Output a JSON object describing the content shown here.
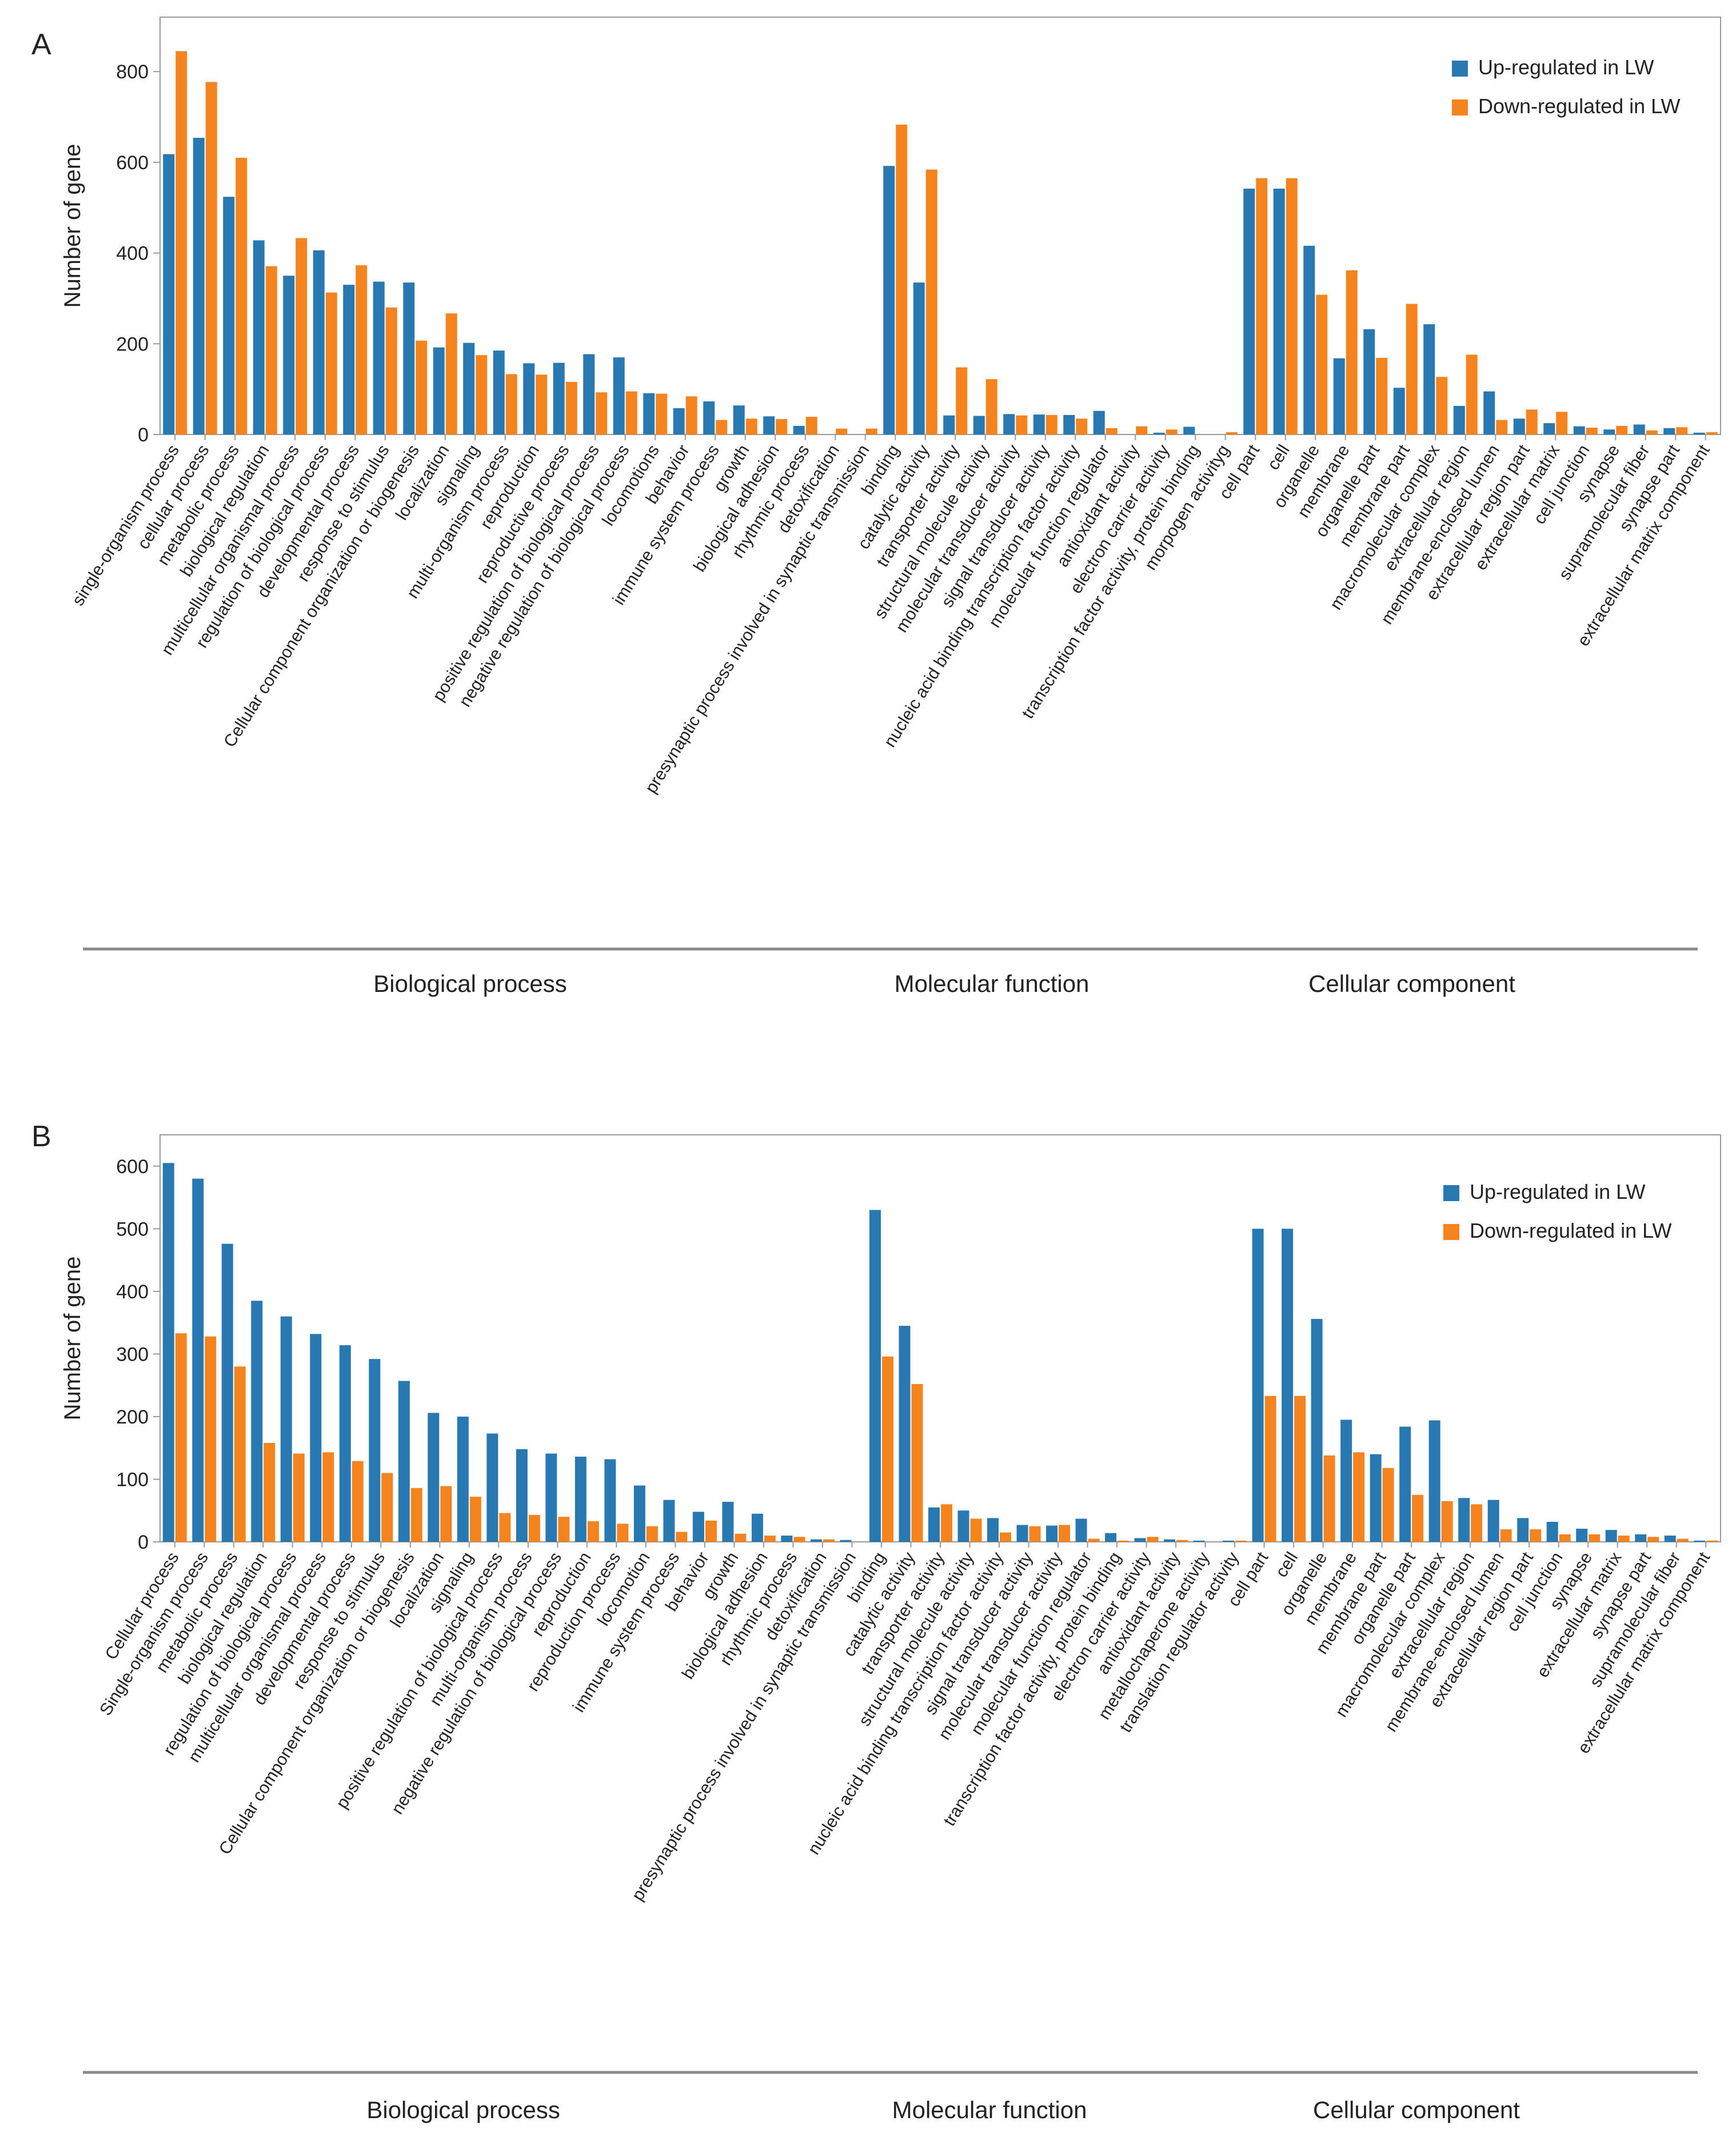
{
  "colors": {
    "up": "#2878b4",
    "down": "#f5841f",
    "axis": "#9a9a9a",
    "text": "#222222",
    "group_line": "#8a8a8a"
  },
  "chart_data": [
    {
      "panel": "A",
      "type": "bar",
      "ylabel": "Number of gene",
      "ylim": [
        0,
        920
      ],
      "yticks": [
        0,
        200,
        400,
        600,
        800
      ],
      "legend_position": "top-right",
      "series": [
        {
          "name": "Up-regulated in LW",
          "color": "#2878b4",
          "values": [
            618,
            654,
            524,
            428,
            350,
            406,
            330,
            337,
            335,
            192,
            202,
            185,
            157,
            158,
            177,
            170,
            91,
            58,
            73,
            64,
            40,
            19,
            0,
            0,
            592,
            335,
            42,
            41,
            45,
            44,
            43,
            52,
            0,
            4,
            17,
            0,
            542,
            542,
            416,
            168,
            232,
            103,
            243,
            63,
            95,
            35,
            25,
            18,
            11,
            22,
            14,
            4
          ]
        },
        {
          "name": "Down-regulated in LW",
          "color": "#f5841f",
          "values": [
            845,
            777,
            610,
            371,
            433,
            313,
            373,
            280,
            207,
            267,
            175,
            133,
            132,
            116,
            93,
            95,
            90,
            84,
            32,
            35,
            34,
            39,
            13,
            13,
            683,
            584,
            148,
            122,
            42,
            43,
            35,
            14,
            18,
            11,
            0,
            5,
            565,
            565,
            308,
            362,
            169,
            288,
            127,
            176,
            32,
            55,
            50,
            15,
            19,
            9,
            16,
            5
          ]
        }
      ],
      "categories": [
        "single-organism process",
        "cellular process",
        "metabolic process",
        "biological regulation",
        "multicellular organismal process",
        "regulation of biological process",
        "developmental process",
        "response to stimulus",
        "Cellular component organization or biogenesis",
        "localization",
        "signaling",
        "multi-organism process",
        "reproduction",
        "reproductive process",
        "positive regulation of biological process",
        "negative regulation of biological process",
        "locomotions",
        "behavior",
        "immune system process",
        "growth",
        "biological adhesion",
        "rhythmic process",
        "detoxification",
        "presynaptic process involved in synaptic transmission",
        "binding",
        "catalytic activity",
        "transporter activity",
        "structural molecule activity",
        "molecular transducer activity",
        "signal transducer activity",
        "nucleic acid binding transcription factor activity",
        "molecular function regulator",
        "antioxidant activity",
        "electron carrier activity",
        "transcription factor activity, protein binding",
        "morpogen activityg",
        "cell part",
        "cell",
        "organelle",
        "membrane",
        "organelle part",
        "membrane part",
        "macromolecular complex",
        "extracellular region",
        "membrane-enclosed lumen",
        "extracellular region part",
        "extracellular matrix",
        "cell junction",
        "synapse",
        "supramolecular fiber",
        "synapse part",
        "extracellular matrix component"
      ],
      "groups": [
        {
          "label": "Biological process",
          "start": 0,
          "end": 23
        },
        {
          "label": "Molecular function",
          "start": 24,
          "end": 35
        },
        {
          "label": "Cellular component",
          "start": 36,
          "end": 51
        }
      ]
    },
    {
      "panel": "B",
      "type": "bar",
      "ylabel": "Number of gene",
      "ylim": [
        0,
        650
      ],
      "yticks": [
        0,
        100,
        200,
        300,
        400,
        500,
        600
      ],
      "legend_position": "top-right",
      "series": [
        {
          "name": "Up-regulated in LW",
          "color": "#2878b4",
          "values": [
            605,
            580,
            476,
            385,
            360,
            332,
            314,
            292,
            257,
            206,
            200,
            173,
            148,
            141,
            136,
            132,
            90,
            67,
            48,
            64,
            45,
            10,
            4,
            3,
            530,
            345,
            55,
            50,
            38,
            27,
            26,
            37,
            14,
            6,
            4,
            2,
            2,
            500,
            500,
            356,
            195,
            140,
            184,
            194,
            70,
            67,
            38,
            32,
            21,
            19,
            12,
            10,
            2
          ]
        },
        {
          "name": "Down-regulated in LW",
          "color": "#f5841f",
          "values": [
            333,
            328,
            280,
            158,
            141,
            143,
            129,
            110,
            86,
            89,
            72,
            46,
            43,
            40,
            33,
            29,
            25,
            16,
            34,
            13,
            10,
            8,
            4,
            0,
            296,
            252,
            60,
            37,
            15,
            25,
            27,
            5,
            2,
            8,
            3,
            0,
            2,
            233,
            233,
            138,
            143,
            118,
            75,
            65,
            60,
            20,
            20,
            12,
            12,
            10,
            8,
            5,
            2
          ]
        }
      ],
      "categories": [
        "Cellular process",
        "Single-organism process",
        "metabolic process",
        "biological regulation",
        "regulation of biological process",
        "multicellular organismal process",
        "developmental process",
        "response to stimulus",
        "Cellular component organization or biogenesis",
        "localization",
        "signaling",
        "positive regulation of biological process",
        "multi-organism process",
        "negative regulation of biological process",
        "reproduction",
        "reproduction process",
        "locomotion",
        "immune system process",
        "behavior",
        "growth",
        "biological adhesion",
        "rhythmic process",
        "detoxification",
        "presynaptic process involved in synaptic transmission",
        "binding",
        "catalytic activity",
        "transporter activity",
        "structural molecule activity",
        "nucleic acid binding transcription factor activity",
        "signal transducer activity",
        "molecular transducer activity",
        "molecular function regulator",
        "transcription factor activity, protein binding",
        "electron carrier activity",
        "antioxidant activity",
        "metallochaperone activity",
        "translation regulator activity",
        "cell part",
        "cell",
        "organelle",
        "membrane",
        "membrane part",
        "organelle part",
        "macromolecular complex",
        "extracellular region",
        "membrane-enclosed lumen",
        "extracellular region part",
        "cell junction",
        "synapse",
        "extracellular matrix",
        "synapse part",
        "supramolecular fiber",
        "extracellular matrix component"
      ],
      "groups": [
        {
          "label": "Biological process",
          "start": 0,
          "end": 23
        },
        {
          "label": "Molecular function",
          "start": 24,
          "end": 36
        },
        {
          "label": "Cellular component",
          "start": 37,
          "end": 52
        }
      ]
    }
  ]
}
